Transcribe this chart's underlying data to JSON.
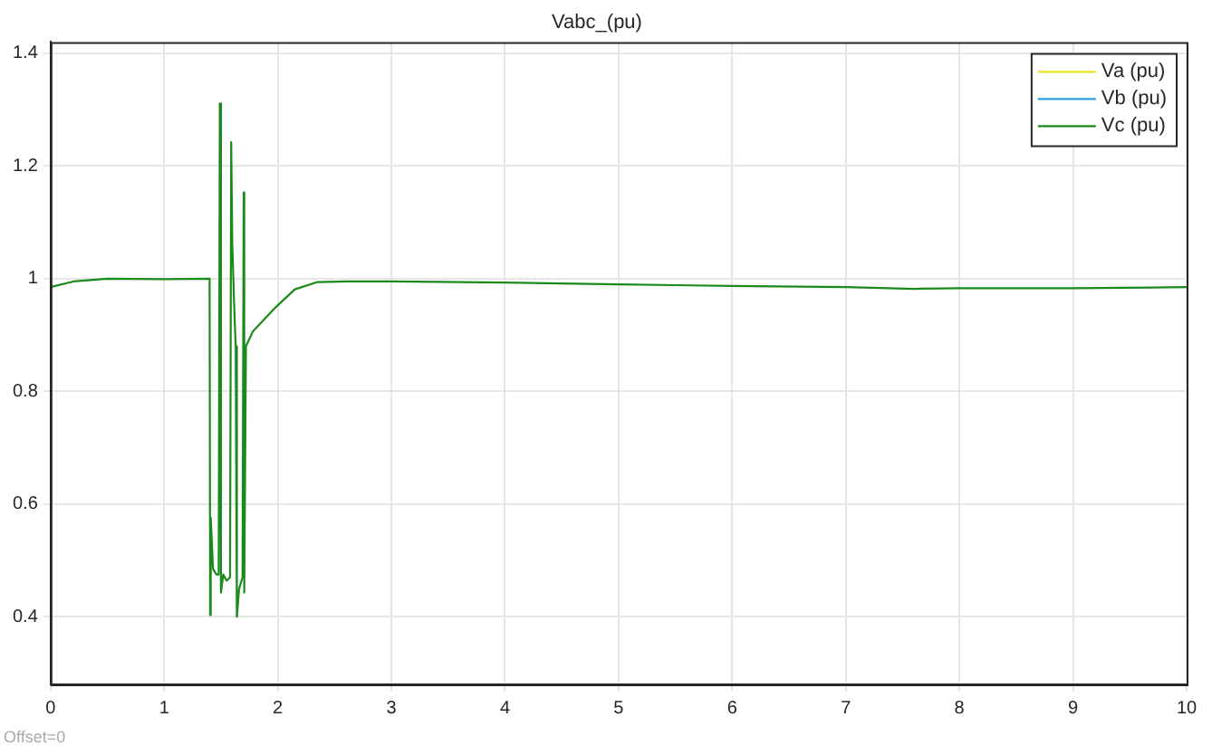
{
  "chart_data": {
    "type": "line",
    "title": "Vabc_(pu)",
    "annotations": [
      "Offset=0"
    ],
    "x": [
      0,
      0.2,
      0.5,
      1.0,
      1.4,
      1.405,
      1.41,
      1.43,
      1.46,
      1.48,
      1.49,
      1.5,
      1.52,
      1.55,
      1.58,
      1.59,
      1.6,
      1.62,
      1.63,
      1.64,
      1.66,
      1.69,
      1.7,
      1.705,
      1.72,
      1.78,
      1.98,
      2.15,
      2.35,
      2.61,
      3,
      4,
      5,
      6,
      7,
      7.6,
      8,
      9,
      10
    ],
    "series": [
      {
        "name": "Va (pu)",
        "color": "#e6e620",
        "values": [
          null,
          null,
          null,
          null,
          null,
          null,
          null,
          null,
          null,
          null,
          null,
          null,
          null,
          null,
          null,
          null,
          null,
          null,
          null,
          null,
          null,
          null,
          null,
          null,
          null,
          null,
          null,
          null,
          null,
          null,
          null,
          null,
          null,
          null,
          null,
          null,
          null,
          null,
          null
        ]
      },
      {
        "name": "Vb (pu)",
        "color": "#2a9fdf",
        "values": [
          null,
          null,
          null,
          null,
          null,
          null,
          null,
          null,
          null,
          null,
          null,
          null,
          null,
          null,
          null,
          null,
          null,
          null,
          null,
          null,
          null,
          null,
          null,
          null,
          null,
          null,
          null,
          null,
          null,
          null,
          null,
          null,
          null,
          null,
          null,
          null,
          null,
          null,
          null
        ]
      },
      {
        "name": "Vc (pu)",
        "color": "#1a8a1a",
        "values": [
          0.985,
          0.995,
          1.0,
          0.999,
          1.0,
          0.403,
          0.576,
          0.485,
          0.475,
          0.475,
          1.311,
          0.443,
          0.475,
          0.464,
          0.47,
          1.242,
          1.06,
          0.93,
          0.88,
          0.4,
          0.45,
          0.47,
          1.153,
          0.443,
          0.88,
          0.906,
          0.949,
          0.981,
          0.994,
          0.995,
          0.995,
          0.993,
          0.99,
          0.987,
          0.985,
          0.982,
          0.983,
          0.983,
          0.985
        ]
      }
    ],
    "xlim": [
      0,
      10
    ],
    "xticks": [
      0,
      1,
      2,
      3,
      4,
      5,
      6,
      7,
      8,
      9,
      10
    ],
    "ylim": [
      0.28,
      1.42
    ],
    "yticks": [
      0.4,
      0.6,
      0.8,
      1,
      1.2,
      1.4
    ],
    "grid": true,
    "legend": "top right",
    "marker": "none",
    "line_style": "solid"
  }
}
